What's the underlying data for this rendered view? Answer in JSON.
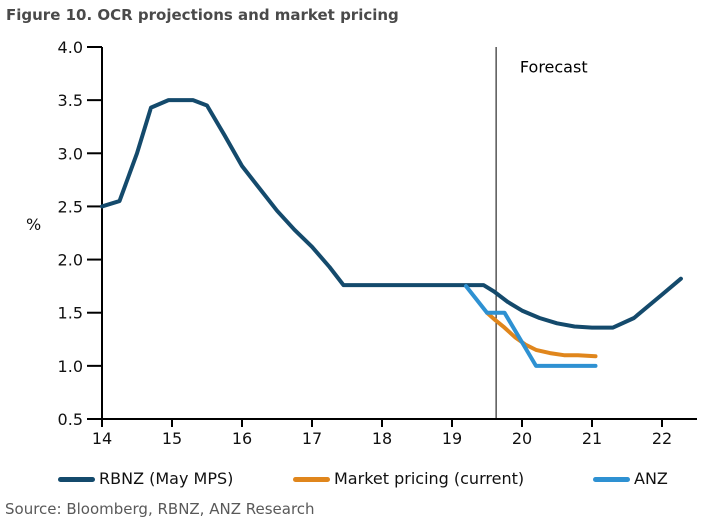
{
  "title": "Figure 10. OCR projections and market pricing",
  "source_note": "Source: Bloomberg, RBNZ, ANZ Research",
  "colors": {
    "navy": "#144A6C",
    "orange": "#E0861C",
    "blue": "#2E91D2",
    "title_text": "#4A4A4A",
    "source_text": "#595959",
    "axis": "#000000",
    "forecast_line": "#000000"
  },
  "chart_data": {
    "type": "line",
    "title": "Figure 10. OCR projections and market pricing",
    "xlabel": "",
    "ylabel": "%",
    "xlim": [
      14,
      22.5
    ],
    "ylim": [
      0.5,
      4.0
    ],
    "x_ticks": [
      14,
      15,
      16,
      17,
      18,
      19,
      20,
      21,
      22
    ],
    "y_ticks": [
      0.5,
      1.0,
      1.5,
      2.0,
      2.5,
      3.0,
      3.5,
      4.0
    ],
    "grid": false,
    "legend_position": "bottom",
    "forecast_divider_x": 19.63,
    "annotations": [
      {
        "text": "Forecast",
        "x": 19.97,
        "y": 3.76
      }
    ],
    "series": [
      {
        "name": "RBNZ (May MPS)",
        "color": "#144A6C",
        "points": [
          [
            14.0,
            2.5
          ],
          [
            14.25,
            2.55
          ],
          [
            14.5,
            3.0
          ],
          [
            14.7,
            3.43
          ],
          [
            14.95,
            3.5
          ],
          [
            15.3,
            3.5
          ],
          [
            15.5,
            3.45
          ],
          [
            15.75,
            3.17
          ],
          [
            16.0,
            2.88
          ],
          [
            16.25,
            2.67
          ],
          [
            16.5,
            2.46
          ],
          [
            16.75,
            2.28
          ],
          [
            17.0,
            2.12
          ],
          [
            17.25,
            1.93
          ],
          [
            17.45,
            1.76
          ],
          [
            19.45,
            1.76
          ],
          [
            19.6,
            1.7
          ],
          [
            19.8,
            1.6
          ],
          [
            20.0,
            1.52
          ],
          [
            20.25,
            1.45
          ],
          [
            20.5,
            1.4
          ],
          [
            20.75,
            1.37
          ],
          [
            21.0,
            1.36
          ],
          [
            21.3,
            1.36
          ],
          [
            21.6,
            1.45
          ],
          [
            22.0,
            1.67
          ],
          [
            22.27,
            1.82
          ]
        ]
      },
      {
        "name": "Market pricing (current)",
        "color": "#E0861C",
        "points": [
          [
            19.5,
            1.5
          ],
          [
            19.62,
            1.43
          ],
          [
            19.75,
            1.36
          ],
          [
            19.9,
            1.27
          ],
          [
            20.05,
            1.2
          ],
          [
            20.2,
            1.15
          ],
          [
            20.4,
            1.12
          ],
          [
            20.6,
            1.1
          ],
          [
            20.8,
            1.1
          ],
          [
            21.05,
            1.09
          ]
        ]
      },
      {
        "name": "ANZ",
        "color": "#2E91D2",
        "points": [
          [
            19.2,
            1.75
          ],
          [
            19.5,
            1.5
          ],
          [
            19.75,
            1.5
          ],
          [
            20.2,
            1.0
          ],
          [
            21.05,
            1.0
          ]
        ]
      }
    ]
  }
}
